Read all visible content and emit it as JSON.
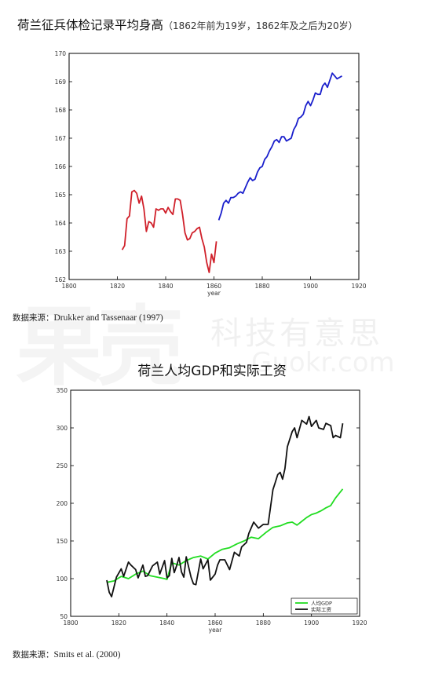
{
  "header": {
    "title": "荷兰征兵体检记录平均身高",
    "subtitle": "（1862年前为19岁，1862年及之后为20岁）"
  },
  "source1": {
    "label": "数据来源：",
    "text": "Drukker and Tassenaar (1997)"
  },
  "source2": {
    "label": "数据来源：",
    "text": "Smits et al. (2000)"
  },
  "watermark": {
    "big": "果壳",
    "cn": "科技有意思",
    "domain": "Guokr.com"
  },
  "chart_data": [
    {
      "type": "line",
      "title": "荷兰征兵体检记录平均身高",
      "xlabel": "year",
      "ylabel": "",
      "xlim": [
        1800,
        1920
      ],
      "ylim": [
        162,
        170
      ],
      "xticks": [
        1800,
        1820,
        1840,
        1860,
        1880,
        1900,
        1920
      ],
      "yticks": [
        162,
        163,
        164,
        165,
        166,
        167,
        168,
        169,
        170
      ],
      "grid": false,
      "series": [
        {
          "color": "#d0202a",
          "x": [
            1822,
            1823,
            1824,
            1825,
            1826,
            1827,
            1828,
            1829,
            1830,
            1831,
            1832,
            1833,
            1834,
            1835,
            1836,
            1837,
            1838,
            1839,
            1840,
            1841,
            1842,
            1843,
            1844,
            1845,
            1846,
            1847,
            1848,
            1849,
            1850,
            1851,
            1852,
            1853,
            1854,
            1855,
            1856,
            1857,
            1858,
            1859,
            1860,
            1861
          ],
          "y": [
            163.05,
            163.2,
            164.15,
            164.25,
            165.1,
            165.15,
            165.05,
            164.7,
            164.95,
            164.5,
            163.7,
            164.05,
            164.0,
            163.85,
            164.5,
            164.45,
            164.5,
            164.5,
            164.35,
            164.55,
            164.4,
            164.3,
            164.85,
            164.85,
            164.8,
            164.3,
            163.65,
            163.4,
            163.45,
            163.65,
            163.7,
            163.8,
            163.85,
            163.45,
            163.15,
            162.6,
            162.25,
            162.9,
            162.6,
            163.35
          ]
        },
        {
          "color": "#1a1fcc",
          "x": [
            1862,
            1863,
            1864,
            1865,
            1866,
            1867,
            1868,
            1869,
            1870,
            1871,
            1872,
            1873,
            1874,
            1875,
            1876,
            1877,
            1878,
            1879,
            1880,
            1881,
            1882,
            1883,
            1884,
            1885,
            1886,
            1887,
            1888,
            1889,
            1890,
            1891,
            1892,
            1893,
            1894,
            1895,
            1896,
            1897,
            1898,
            1899,
            1900,
            1901,
            1902,
            1903,
            1904,
            1905,
            1906,
            1907,
            1908,
            1909,
            1910,
            1911,
            1912,
            1913
          ],
          "y": [
            164.1,
            164.35,
            164.7,
            164.8,
            164.7,
            164.9,
            164.9,
            164.95,
            165.05,
            165.1,
            165.05,
            165.25,
            165.45,
            165.6,
            165.5,
            165.55,
            165.8,
            165.95,
            166.0,
            166.25,
            166.35,
            166.55,
            166.7,
            166.9,
            166.95,
            166.85,
            167.05,
            167.05,
            166.9,
            166.95,
            167.0,
            167.3,
            167.45,
            167.7,
            167.75,
            167.85,
            168.15,
            168.3,
            168.15,
            168.35,
            168.6,
            168.55,
            168.55,
            168.85,
            168.95,
            168.8,
            169.05,
            169.3,
            169.2,
            169.1,
            169.15,
            169.2
          ]
        }
      ]
    },
    {
      "type": "line",
      "title": "荷兰人均GDP和实际工资",
      "xlabel": "year",
      "ylabel": "",
      "xlim": [
        1800,
        1920
      ],
      "ylim": [
        50,
        350
      ],
      "xticks": [
        1800,
        1820,
        1840,
        1860,
        1880,
        1900,
        1920
      ],
      "yticks": [
        50,
        100,
        150,
        200,
        250,
        300,
        350
      ],
      "grid": false,
      "legend_position": "bottom-right",
      "series": [
        {
          "name": "人均GDP",
          "color": "#22dd22",
          "x": [
            1815,
            1818,
            1821,
            1824,
            1827,
            1830,
            1833,
            1836,
            1839,
            1840,
            1842,
            1845,
            1848,
            1851,
            1854,
            1857,
            1860,
            1863,
            1866,
            1869,
            1872,
            1875,
            1878,
            1881,
            1884,
            1887,
            1890,
            1892,
            1894,
            1896,
            1898,
            1900,
            1902,
            1904,
            1906,
            1908,
            1910,
            1913
          ],
          "y": [
            95,
            97,
            103,
            100,
            106,
            110,
            104,
            102,
            100,
            99,
            121,
            118,
            124,
            128,
            130,
            126,
            134,
            139,
            141,
            146,
            150,
            155,
            153,
            161,
            168,
            170,
            174,
            175,
            171,
            176,
            181,
            185,
            187,
            190,
            194,
            197,
            207,
            219
          ]
        },
        {
          "name": "实际工资",
          "color": "#111111",
          "x": [
            1815,
            1816,
            1817,
            1819,
            1821,
            1822,
            1824,
            1825,
            1827,
            1828,
            1830,
            1831,
            1832,
            1834,
            1836,
            1837,
            1839,
            1840,
            1841,
            1842,
            1843,
            1844,
            1845,
            1846,
            1847,
            1848,
            1850,
            1851,
            1852,
            1854,
            1855,
            1857,
            1858,
            1860,
            1861,
            1862,
            1864,
            1866,
            1868,
            1870,
            1871,
            1873,
            1874,
            1876,
            1878,
            1880,
            1882,
            1884,
            1885,
            1886,
            1887,
            1888,
            1889,
            1890,
            1892,
            1893,
            1894,
            1896,
            1898,
            1899,
            1900,
            1902,
            1903,
            1905,
            1906,
            1908,
            1909,
            1910,
            1912,
            1913
          ],
          "y": [
            98,
            82,
            76,
            102,
            113,
            103,
            122,
            118,
            112,
            101,
            118,
            103,
            104,
            117,
            122,
            106,
            124,
            101,
            104,
            127,
            108,
            117,
            128,
            109,
            102,
            129,
            102,
            93,
            92,
            126,
            113,
            125,
            98,
            106,
            118,
            125,
            125,
            112,
            135,
            130,
            142,
            148,
            160,
            175,
            167,
            172,
            172,
            218,
            228,
            238,
            241,
            232,
            246,
            275,
            295,
            300,
            287,
            310,
            305,
            315,
            302,
            310,
            300,
            298,
            306,
            303,
            287,
            290,
            287,
            306
          ]
        }
      ]
    }
  ]
}
